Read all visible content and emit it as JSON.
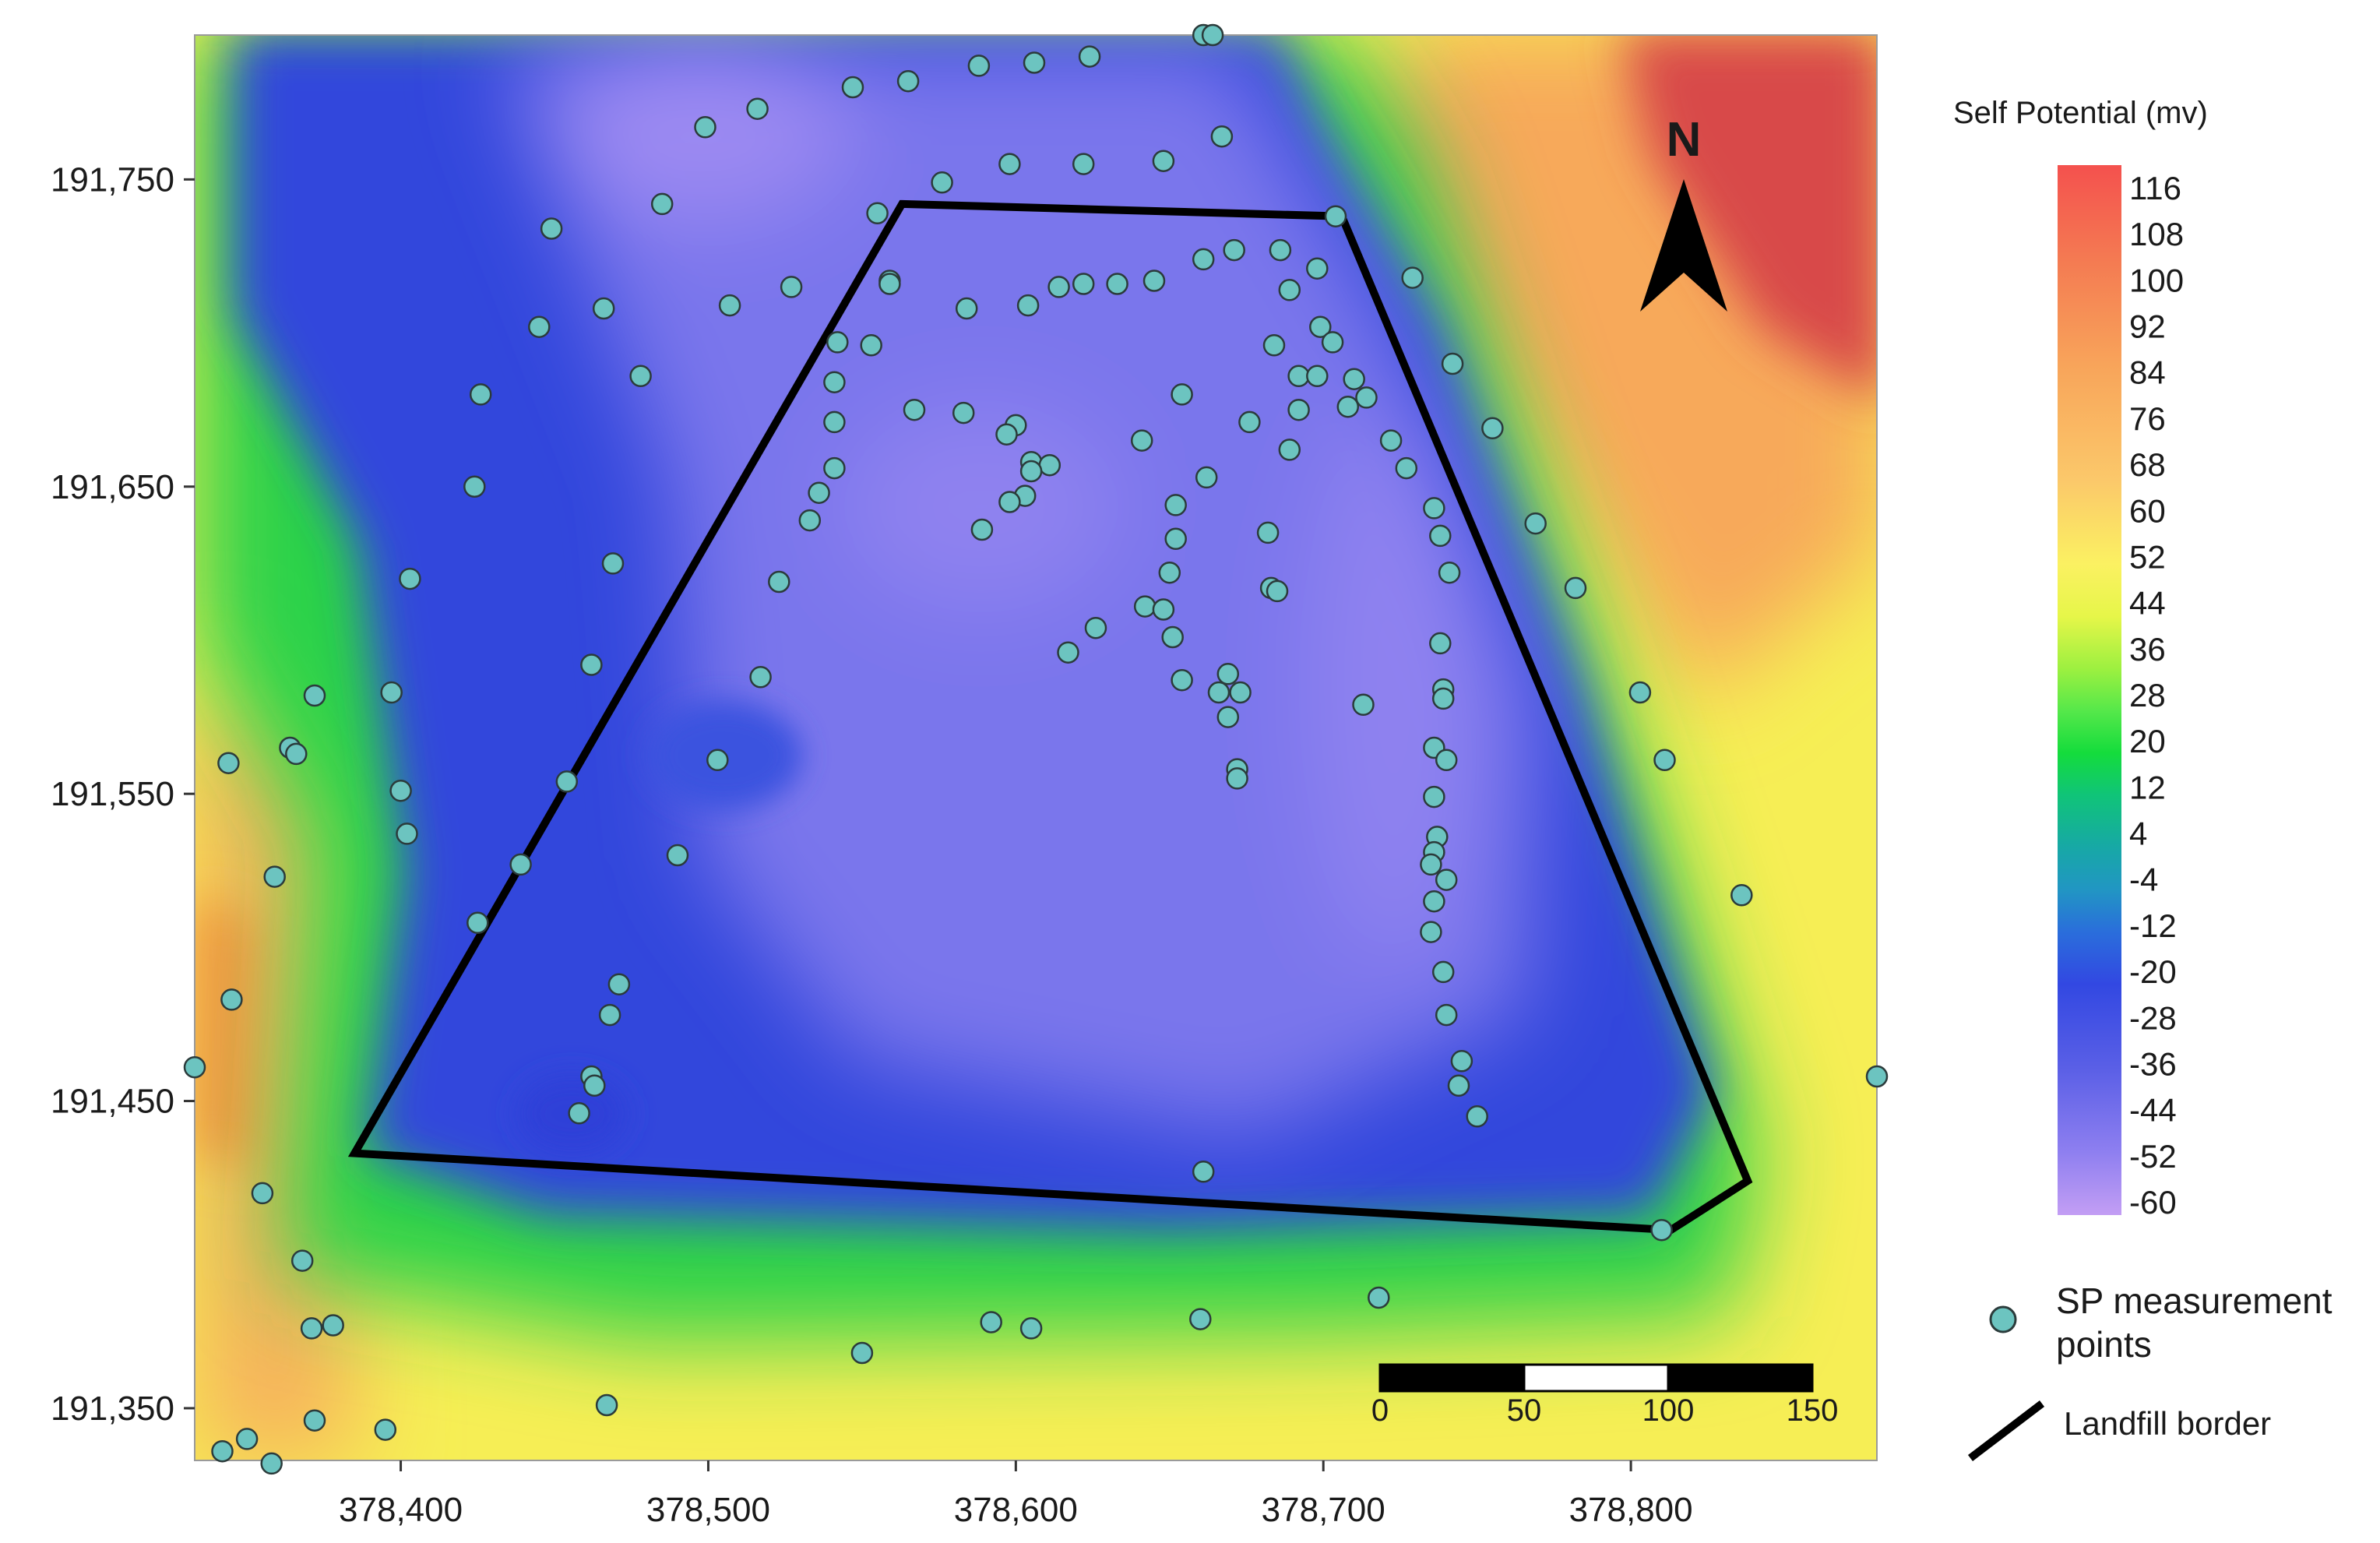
{
  "map": {
    "north_label": "N",
    "x_ticks": [
      "378,400",
      "378,500",
      "378,600",
      "378,700",
      "378,800"
    ],
    "x_tick_values": [
      378400,
      378500,
      378600,
      378700,
      378800
    ],
    "y_ticks": [
      "191,750",
      "191,650",
      "191,550",
      "191,450",
      "191,350"
    ],
    "y_tick_values": [
      191750,
      191650,
      191550,
      191450,
      191350
    ],
    "extent": {
      "x": [
        378333,
        378880
      ],
      "y": [
        191333,
        191797
      ]
    },
    "scale_bar": {
      "labels": [
        "0",
        "50",
        "100",
        "150"
      ]
    },
    "landfill_border": [
      [
        378563,
        191742
      ],
      [
        378706,
        191738
      ],
      [
        378838,
        191424
      ],
      [
        378813,
        191408
      ],
      [
        378385,
        191433
      ]
    ],
    "measurement_points": [
      [
        378661,
        191797
      ],
      [
        378664,
        191797
      ],
      [
        378624,
        191790
      ],
      [
        378606,
        191788
      ],
      [
        378588,
        191787
      ],
      [
        378565,
        191782
      ],
      [
        378547,
        191780
      ],
      [
        378516,
        191773
      ],
      [
        378499,
        191767
      ],
      [
        378667,
        191764
      ],
      [
        378598,
        191755
      ],
      [
        378622,
        191755
      ],
      [
        378648,
        191756
      ],
      [
        378576,
        191749
      ],
      [
        378485,
        191742
      ],
      [
        378555,
        191739
      ],
      [
        378704,
        191738
      ],
      [
        378449,
        191734
      ],
      [
        378671,
        191727
      ],
      [
        378686,
        191727
      ],
      [
        378661,
        191724
      ],
      [
        378698,
        191721
      ],
      [
        378729,
        191718
      ],
      [
        378559,
        191717
      ],
      [
        378559,
        191716
      ],
      [
        378645,
        191717
      ],
      [
        378633,
        191716
      ],
      [
        378622,
        191716
      ],
      [
        378614,
        191715
      ],
      [
        378527,
        191715
      ],
      [
        378689,
        191714
      ],
      [
        378507,
        191709
      ],
      [
        378604,
        191709
      ],
      [
        378584,
        191708
      ],
      [
        378466,
        191708
      ],
      [
        378445,
        191702
      ],
      [
        378699,
        191702
      ],
      [
        378703,
        191697
      ],
      [
        378684,
        191696
      ],
      [
        378542,
        191697
      ],
      [
        378553,
        191696
      ],
      [
        378742,
        191690
      ],
      [
        378692,
        191686
      ],
      [
        378698,
        191686
      ],
      [
        378478,
        191686
      ],
      [
        378710,
        191685
      ],
      [
        378541,
        191684
      ],
      [
        378426,
        191680
      ],
      [
        378654,
        191680
      ],
      [
        378714,
        191679
      ],
      [
        378708,
        191676
      ],
      [
        378567,
        191675
      ],
      [
        378583,
        191674
      ],
      [
        378541,
        191671
      ],
      [
        378600,
        191670
      ],
      [
        378692,
        191675
      ],
      [
        378676,
        191671
      ],
      [
        378755,
        191669
      ],
      [
        378597,
        191667
      ],
      [
        378722,
        191665
      ],
      [
        378641,
        191665
      ],
      [
        378689,
        191662
      ],
      [
        378605,
        191658
      ],
      [
        378611,
        191657
      ],
      [
        378605,
        191655
      ],
      [
        378727,
        191656
      ],
      [
        378541,
        191656
      ],
      [
        378424,
        191650
      ],
      [
        378662,
        191653
      ],
      [
        378536,
        191648
      ],
      [
        378603,
        191647
      ],
      [
        378598,
        191645
      ],
      [
        378652,
        191644
      ],
      [
        378736,
        191643
      ],
      [
        378533,
        191639
      ],
      [
        378769,
        191638
      ],
      [
        378589,
        191636
      ],
      [
        378682,
        191635
      ],
      [
        378738,
        191634
      ],
      [
        378652,
        191633
      ],
      [
        378469,
        191625
      ],
      [
        378523,
        191619
      ],
      [
        378741,
        191622
      ],
      [
        378650,
        191622
      ],
      [
        378403,
        191620
      ],
      [
        378683,
        191617
      ],
      [
        378685,
        191616
      ],
      [
        378782,
        191617
      ],
      [
        378642,
        191611
      ],
      [
        378648,
        191610
      ],
      [
        378651,
        191601
      ],
      [
        378626,
        191604
      ],
      [
        378738,
        191599
      ],
      [
        378617,
        191596
      ],
      [
        378462,
        191592
      ],
      [
        378654,
        191587
      ],
      [
        378669,
        191589
      ],
      [
        378517,
        191588
      ],
      [
        378803,
        191583
      ],
      [
        378372,
        191582
      ],
      [
        378397,
        191583
      ],
      [
        378739,
        191584
      ],
      [
        378666,
        191583
      ],
      [
        378673,
        191583
      ],
      [
        378713,
        191579
      ],
      [
        378739,
        191581
      ],
      [
        378669,
        191575
      ],
      [
        378364,
        191565
      ],
      [
        378366,
        191563
      ],
      [
        378736,
        191565
      ],
      [
        378503,
        191561
      ],
      [
        378740,
        191561
      ],
      [
        378811,
        191561
      ],
      [
        378344,
        191560
      ],
      [
        378672,
        191558
      ],
      [
        378672,
        191555
      ],
      [
        378454,
        191554
      ],
      [
        378400,
        191551
      ],
      [
        378736,
        191549
      ],
      [
        378402,
        191537
      ],
      [
        378737,
        191536
      ],
      [
        378736,
        191531
      ],
      [
        378490,
        191530
      ],
      [
        378439,
        191527
      ],
      [
        378735,
        191527
      ],
      [
        378359,
        191523
      ],
      [
        378740,
        191522
      ],
      [
        378836,
        191517
      ],
      [
        378736,
        191515
      ],
      [
        378425,
        191508
      ],
      [
        378735,
        191505
      ],
      [
        378739,
        191492
      ],
      [
        378471,
        191488
      ],
      [
        378345,
        191483
      ],
      [
        378468,
        191478
      ],
      [
        378740,
        191478
      ],
      [
        378745,
        191463
      ],
      [
        378462,
        191458
      ],
      [
        378744,
        191455
      ],
      [
        378463,
        191455
      ],
      [
        378333,
        191461
      ],
      [
        378880,
        191458
      ],
      [
        378458,
        191446
      ],
      [
        378750,
        191445
      ],
      [
        378661,
        191427
      ],
      [
        378355,
        191420
      ],
      [
        378810,
        191408
      ],
      [
        378368,
        191398
      ],
      [
        378718,
        191386
      ],
      [
        378371,
        191376
      ],
      [
        378378,
        191377
      ],
      [
        378592,
        191378
      ],
      [
        378605,
        191376
      ],
      [
        378660,
        191379
      ],
      [
        378550,
        191368
      ],
      [
        378467,
        191351
      ],
      [
        378372,
        191346
      ],
      [
        378395,
        191343
      ],
      [
        378350,
        191340
      ],
      [
        378342,
        191336
      ],
      [
        378358,
        191332
      ]
    ]
  },
  "legend": {
    "title": "Self Potential (mv)",
    "values": [
      "116",
      "108",
      "100",
      "92",
      "84",
      "76",
      "68",
      "60",
      "52",
      "44",
      "36",
      "28",
      "20",
      "12",
      "4",
      "-4",
      "-12",
      "-20",
      "-28",
      "-36",
      "-44",
      "-52",
      "-60"
    ],
    "colors": {
      "116": "#f4514e",
      "100": "#f47a52",
      "84": "#f8a45a",
      "68": "#fbc86a",
      "52": "#fbf162",
      "44": "#e6f649",
      "36": "#9cf040",
      "28": "#55e84a",
      "20": "#14dc3c",
      "12": "#10c478",
      "4": "#17a8a6",
      "-4": "#2196c3",
      "-12": "#2a6edb",
      "-20": "#3248e2",
      "-36": "#5a5fe6",
      "-52": "#8e7ff0",
      "-60": "#c39ef4"
    },
    "sp_label": "SP measurement points",
    "border_label": "Landfill border",
    "point_color": "#6cc4c0"
  }
}
